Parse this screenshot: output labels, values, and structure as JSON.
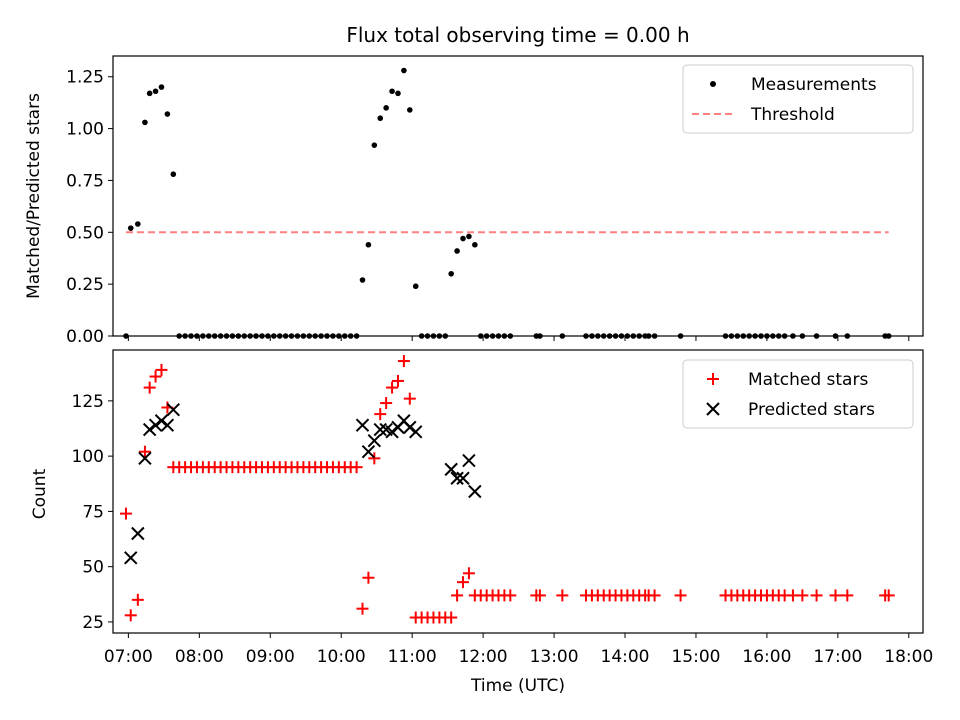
{
  "chart_data": [
    {
      "type": "scatter",
      "title": "Flux total observing time = 0.00 h",
      "xlabel": "",
      "ylabel": "Matched/Predicted stars",
      "ylim": [
        0.0,
        1.35
      ],
      "yticks": [
        "0.00",
        "0.25",
        "0.50",
        "0.75",
        "1.00",
        "1.25"
      ],
      "legend_position": "top-right",
      "series": [
        {
          "name": "Measurements",
          "marker": "dot",
          "color": "#000000",
          "points": [
            [
              "06:58",
              0.0
            ],
            [
              "07:02",
              0.52
            ],
            [
              "07:08",
              0.54
            ],
            [
              "07:14",
              1.03
            ],
            [
              "07:18",
              1.17
            ],
            [
              "07:23",
              1.18
            ],
            [
              "07:28",
              1.2
            ],
            [
              "07:33",
              1.07
            ],
            [
              "07:38",
              0.78
            ],
            [
              "07:43",
              0.0
            ],
            [
              "07:48",
              0.0
            ],
            [
              "07:53",
              0.0
            ],
            [
              "07:58",
              0.0
            ],
            [
              "08:03",
              0.0
            ],
            [
              "08:08",
              0.0
            ],
            [
              "08:13",
              0.0
            ],
            [
              "08:18",
              0.0
            ],
            [
              "08:23",
              0.0
            ],
            [
              "08:28",
              0.0
            ],
            [
              "08:33",
              0.0
            ],
            [
              "08:38",
              0.0
            ],
            [
              "08:43",
              0.0
            ],
            [
              "08:48",
              0.0
            ],
            [
              "08:53",
              0.0
            ],
            [
              "08:58",
              0.0
            ],
            [
              "09:03",
              0.0
            ],
            [
              "09:08",
              0.0
            ],
            [
              "09:13",
              0.0
            ],
            [
              "09:18",
              0.0
            ],
            [
              "09:23",
              0.0
            ],
            [
              "09:28",
              0.0
            ],
            [
              "09:33",
              0.0
            ],
            [
              "09:38",
              0.0
            ],
            [
              "09:43",
              0.0
            ],
            [
              "09:48",
              0.0
            ],
            [
              "09:53",
              0.0
            ],
            [
              "09:58",
              0.0
            ],
            [
              "10:03",
              0.0
            ],
            [
              "10:08",
              0.0
            ],
            [
              "10:13",
              0.0
            ],
            [
              "10:18",
              0.27
            ],
            [
              "10:23",
              0.44
            ],
            [
              "10:28",
              0.92
            ],
            [
              "10:33",
              1.05
            ],
            [
              "10:38",
              1.1
            ],
            [
              "10:43",
              1.18
            ],
            [
              "10:48",
              1.17
            ],
            [
              "10:53",
              1.28
            ],
            [
              "10:58",
              1.09
            ],
            [
              "11:03",
              0.24
            ],
            [
              "11:08",
              0.0
            ],
            [
              "11:13",
              0.0
            ],
            [
              "11:18",
              0.0
            ],
            [
              "11:23",
              0.0
            ],
            [
              "11:28",
              0.0
            ],
            [
              "11:33",
              0.3
            ],
            [
              "11:38",
              0.41
            ],
            [
              "11:43",
              0.47
            ],
            [
              "11:48",
              0.48
            ],
            [
              "11:53",
              0.44
            ],
            [
              "11:58",
              0.0
            ],
            [
              "12:03",
              0.0
            ],
            [
              "12:08",
              0.0
            ],
            [
              "12:13",
              0.0
            ],
            [
              "12:18",
              0.0
            ],
            [
              "12:23",
              0.0
            ],
            [
              "12:45",
              0.0
            ],
            [
              "12:48",
              0.0
            ],
            [
              "13:07",
              0.0
            ],
            [
              "13:27",
              0.0
            ],
            [
              "13:32",
              0.0
            ],
            [
              "13:37",
              0.0
            ],
            [
              "13:42",
              0.0
            ],
            [
              "13:47",
              0.0
            ],
            [
              "13:52",
              0.0
            ],
            [
              "13:57",
              0.0
            ],
            [
              "14:02",
              0.0
            ],
            [
              "14:07",
              0.0
            ],
            [
              "14:12",
              0.0
            ],
            [
              "14:17",
              0.0
            ],
            [
              "14:20",
              0.0
            ],
            [
              "14:25",
              0.0
            ],
            [
              "14:47",
              0.0
            ],
            [
              "15:25",
              0.0
            ],
            [
              "15:30",
              0.0
            ],
            [
              "15:35",
              0.0
            ],
            [
              "15:40",
              0.0
            ],
            [
              "15:45",
              0.0
            ],
            [
              "15:50",
              0.0
            ],
            [
              "15:55",
              0.0
            ],
            [
              "16:00",
              0.0
            ],
            [
              "16:05",
              0.0
            ],
            [
              "16:10",
              0.0
            ],
            [
              "16:15",
              0.0
            ],
            [
              "16:22",
              0.0
            ],
            [
              "16:30",
              0.0
            ],
            [
              "16:42",
              0.0
            ],
            [
              "16:58",
              0.0
            ],
            [
              "17:08",
              0.0
            ],
            [
              "17:40",
              0.0
            ],
            [
              "17:43",
              0.0
            ]
          ]
        },
        {
          "name": "Threshold",
          "marker": "dashed-line",
          "color": "#ff8080",
          "points": [
            [
              "06:58",
              0.5
            ],
            [
              "17:43",
              0.5
            ]
          ]
        }
      ]
    },
    {
      "type": "scatter",
      "title": "",
      "xlabel": "Time (UTC)",
      "ylabel": "Count",
      "ylim": [
        20,
        148
      ],
      "yticks": [
        "25",
        "50",
        "75",
        "100",
        "125"
      ],
      "xlim": [
        "06:47",
        "18:12"
      ],
      "xticks": [
        "07:00",
        "08:00",
        "09:00",
        "10:00",
        "11:00",
        "12:00",
        "13:00",
        "14:00",
        "15:00",
        "16:00",
        "17:00",
        "18:00"
      ],
      "legend_position": "top-right",
      "series": [
        {
          "name": "Matched stars",
          "marker": "plus",
          "color": "#ff0000",
          "points": [
            [
              "06:58",
              74
            ],
            [
              "07:02",
              28
            ],
            [
              "07:08",
              35
            ],
            [
              "07:14",
              102
            ],
            [
              "07:18",
              131
            ],
            [
              "07:23",
              136
            ],
            [
              "07:28",
              139
            ],
            [
              "07:33",
              122
            ],
            [
              "07:38",
              95
            ],
            [
              "07:43",
              95
            ],
            [
              "07:48",
              95
            ],
            [
              "07:53",
              95
            ],
            [
              "07:58",
              95
            ],
            [
              "08:03",
              95
            ],
            [
              "08:08",
              95
            ],
            [
              "08:13",
              95
            ],
            [
              "08:18",
              95
            ],
            [
              "08:23",
              95
            ],
            [
              "08:28",
              95
            ],
            [
              "08:33",
              95
            ],
            [
              "08:38",
              95
            ],
            [
              "08:43",
              95
            ],
            [
              "08:48",
              95
            ],
            [
              "08:53",
              95
            ],
            [
              "08:58",
              95
            ],
            [
              "09:03",
              95
            ],
            [
              "09:08",
              95
            ],
            [
              "09:13",
              95
            ],
            [
              "09:18",
              95
            ],
            [
              "09:23",
              95
            ],
            [
              "09:28",
              95
            ],
            [
              "09:33",
              95
            ],
            [
              "09:38",
              95
            ],
            [
              "09:43",
              95
            ],
            [
              "09:48",
              95
            ],
            [
              "09:53",
              95
            ],
            [
              "09:58",
              95
            ],
            [
              "10:03",
              95
            ],
            [
              "10:08",
              95
            ],
            [
              "10:13",
              95
            ],
            [
              "10:18",
              31
            ],
            [
              "10:23",
              45
            ],
            [
              "10:28",
              99
            ],
            [
              "10:33",
              119
            ],
            [
              "10:38",
              124
            ],
            [
              "10:43",
              131
            ],
            [
              "10:48",
              134
            ],
            [
              "10:53",
              143
            ],
            [
              "10:58",
              126
            ],
            [
              "11:03",
              27
            ],
            [
              "11:08",
              27
            ],
            [
              "11:13",
              27
            ],
            [
              "11:18",
              27
            ],
            [
              "11:23",
              27
            ],
            [
              "11:28",
              27
            ],
            [
              "11:33",
              27
            ],
            [
              "11:38",
              37
            ],
            [
              "11:43",
              43
            ],
            [
              "11:48",
              47
            ],
            [
              "11:53",
              37
            ],
            [
              "11:58",
              37
            ],
            [
              "12:03",
              37
            ],
            [
              "12:08",
              37
            ],
            [
              "12:13",
              37
            ],
            [
              "12:18",
              37
            ],
            [
              "12:23",
              37
            ],
            [
              "12:45",
              37
            ],
            [
              "12:48",
              37
            ],
            [
              "13:07",
              37
            ],
            [
              "13:27",
              37
            ],
            [
              "13:32",
              37
            ],
            [
              "13:37",
              37
            ],
            [
              "13:42",
              37
            ],
            [
              "13:47",
              37
            ],
            [
              "13:52",
              37
            ],
            [
              "13:57",
              37
            ],
            [
              "14:02",
              37
            ],
            [
              "14:07",
              37
            ],
            [
              "14:12",
              37
            ],
            [
              "14:17",
              37
            ],
            [
              "14:20",
              37
            ],
            [
              "14:25",
              37
            ],
            [
              "14:47",
              37
            ],
            [
              "15:25",
              37
            ],
            [
              "15:30",
              37
            ],
            [
              "15:35",
              37
            ],
            [
              "15:40",
              37
            ],
            [
              "15:45",
              37
            ],
            [
              "15:50",
              37
            ],
            [
              "15:55",
              37
            ],
            [
              "16:00",
              37
            ],
            [
              "16:05",
              37
            ],
            [
              "16:10",
              37
            ],
            [
              "16:15",
              37
            ],
            [
              "16:22",
              37
            ],
            [
              "16:30",
              37
            ],
            [
              "16:42",
              37
            ],
            [
              "16:58",
              37
            ],
            [
              "17:08",
              37
            ],
            [
              "17:40",
              37
            ],
            [
              "17:43",
              37
            ]
          ]
        },
        {
          "name": "Predicted stars",
          "marker": "x",
          "color": "#000000",
          "points": [
            [
              "07:02",
              54
            ],
            [
              "07:08",
              65
            ],
            [
              "07:14",
              99
            ],
            [
              "07:18",
              112
            ],
            [
              "07:23",
              114
            ],
            [
              "07:28",
              116
            ],
            [
              "07:33",
              114
            ],
            [
              "07:38",
              121
            ],
            [
              "10:18",
              114
            ],
            [
              "10:23",
              102
            ],
            [
              "10:28",
              107
            ],
            [
              "10:33",
              112
            ],
            [
              "10:38",
              112
            ],
            [
              "10:43",
              111
            ],
            [
              "10:48",
              113
            ],
            [
              "10:53",
              116
            ],
            [
              "10:58",
              113
            ],
            [
              "11:03",
              111
            ],
            [
              "11:33",
              94
            ],
            [
              "11:38",
              90
            ],
            [
              "11:43",
              90
            ],
            [
              "11:48",
              98
            ],
            [
              "11:53",
              84
            ]
          ]
        }
      ]
    }
  ]
}
